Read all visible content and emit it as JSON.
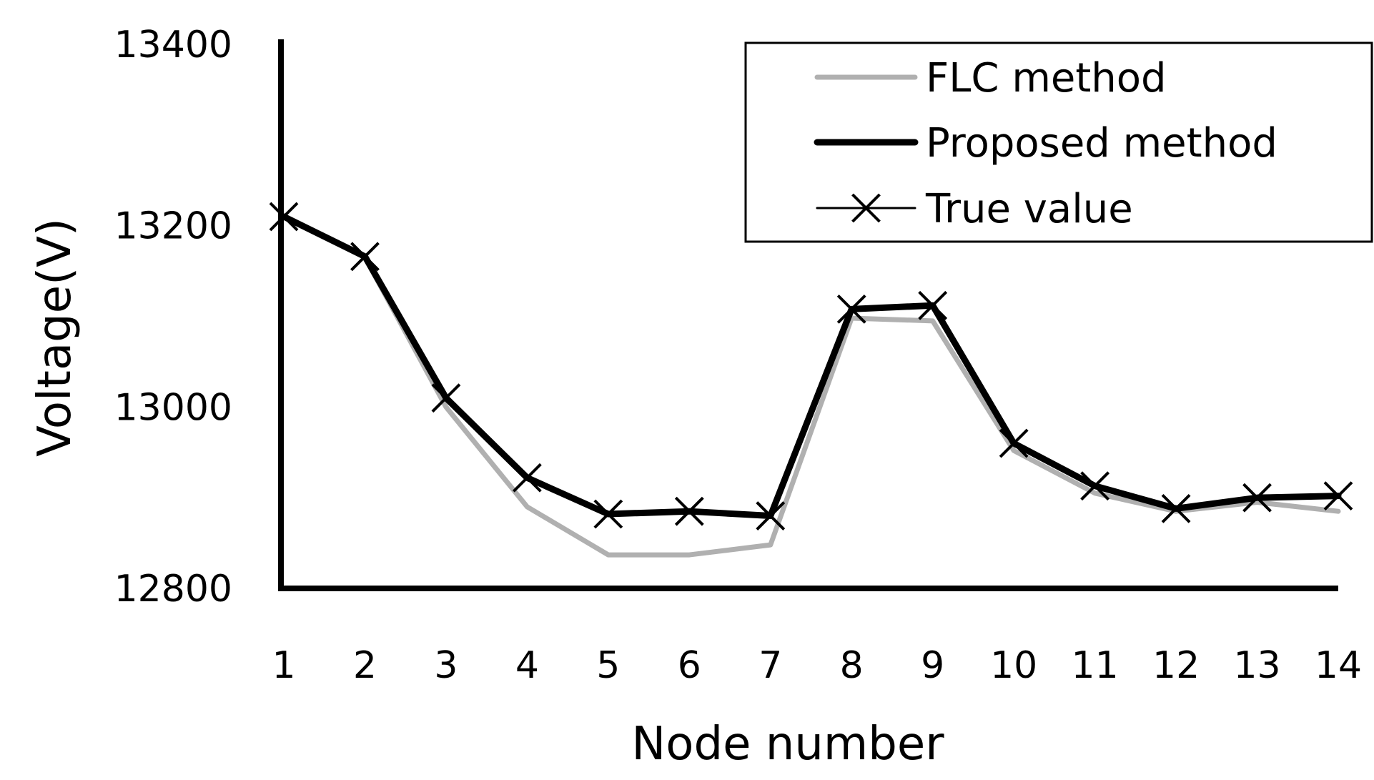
{
  "chart_data": {
    "type": "line",
    "xlabel": "Node number",
    "ylabel": "Voltage(V)",
    "x": [
      1,
      2,
      3,
      4,
      5,
      6,
      7,
      8,
      9,
      10,
      11,
      12,
      13,
      14
    ],
    "x_tick_labels": [
      "1",
      "2",
      "3",
      "4",
      "5",
      "6",
      "7",
      "8",
      "9",
      "10",
      "11",
      "12",
      "13",
      "14"
    ],
    "ylim": [
      12800,
      13400
    ],
    "y_ticks": [
      12800,
      13000,
      13200,
      13400
    ],
    "y_tick_labels": [
      "12800",
      "13000",
      "13200",
      "13400"
    ],
    "grid": false,
    "legend_position": "top-right",
    "series": [
      {
        "name": "FLC method",
        "color": "#b0b0b0",
        "marker": "none",
        "values": [
          13210,
          13165,
          13000,
          12890,
          12837,
          12837,
          12848,
          13098,
          13095,
          12952,
          12905,
          12885,
          12895,
          12885
        ]
      },
      {
        "name": "Proposed method",
        "color": "#000000",
        "marker": "none",
        "values": [
          13210,
          13166,
          13010,
          12922,
          12882,
          12885,
          12880,
          13108,
          13112,
          12960,
          12913,
          12888,
          12900,
          12902
        ]
      },
      {
        "name": "True value",
        "color": "#000000",
        "marker": "x",
        "values": [
          13210,
          13166,
          13010,
          12922,
          12882,
          12885,
          12880,
          13108,
          13112,
          12960,
          12913,
          12888,
          12900,
          12902
        ]
      }
    ]
  }
}
